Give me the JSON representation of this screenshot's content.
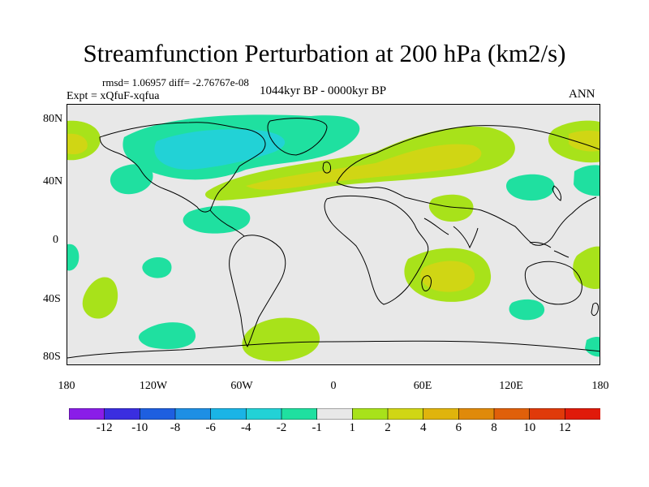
{
  "title": "Streamfunction Perturbation at 200 hPa (km2/s)",
  "stats": "rmsd= 1.06957 diff= -2.76767e-08",
  "experiment": "Expt = xQfuF-xqfua",
  "period": "1044kyr BP - 0000kyr BP",
  "season": "ANN",
  "lat_labels": [
    "80N",
    "40N",
    "0",
    "40S",
    "80S"
  ],
  "lon_labels": [
    "180",
    "120W",
    "60W",
    "0",
    "60E",
    "120E",
    "180"
  ],
  "colorbar": {
    "labels": [
      "-12",
      "-10",
      "-8",
      "-6",
      "-4",
      "-2",
      "-1",
      "1",
      "2",
      "4",
      "6",
      "8",
      "10",
      "12"
    ],
    "colors": [
      "#8a1de8",
      "#3a2ee0",
      "#1e5fe0",
      "#1e8fe4",
      "#1ab4e6",
      "#22d2d6",
      "#1fe0a0",
      "#e8e8e8",
      "#a8e21a",
      "#d0d614",
      "#e0b40c",
      "#e08a0a",
      "#e0600a",
      "#e03a0a",
      "#e01a0a"
    ]
  },
  "colors": {
    "land_line": "#000000",
    "background": "#e8e8e8",
    "neg1": "#1fe0a0",
    "neg2": "#22d2d6",
    "pos1": "#a8e21a",
    "pos2": "#d0d614",
    "pos3": "#e0b40c"
  }
}
